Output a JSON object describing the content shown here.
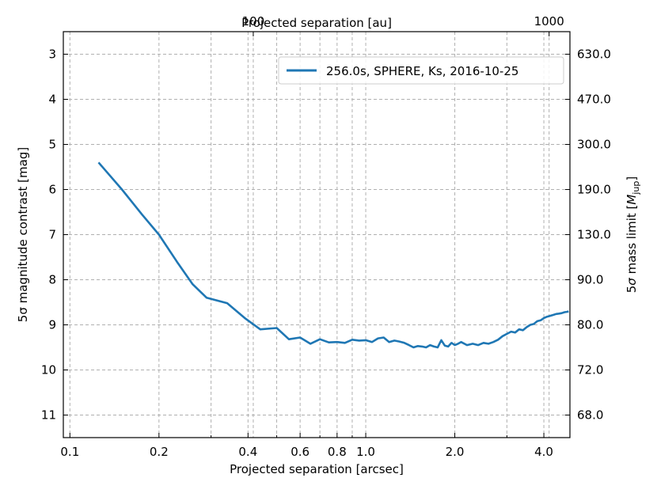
{
  "chart_data": {
    "type": "line",
    "xlabel": "Projected separation [arcsec]",
    "ylabel": "5σ magnitude contrast [mag]",
    "ylabel_sym": "σ",
    "top_xlabel": "Projected separation [au]",
    "right_ylabel": "5σ mass limit [M_jup]",
    "right_ylabel_prefix": "5",
    "right_ylabel_sym": "σ",
    "right_ylabel_mid": " mass limit [",
    "right_ylabel_M": "M",
    "right_ylabel_sub": "jup",
    "right_ylabel_end": "]",
    "x_scale": "log",
    "xlim": [
      0.095,
      4.9
    ],
    "ylim": [
      11.5,
      2.5
    ],
    "y_inverted": true,
    "grid": true,
    "legend_position": "top-right",
    "x_ticks": [
      0.1,
      0.2,
      0.4,
      0.6,
      0.8,
      1.0,
      2.0,
      4.0
    ],
    "x_tick_labels": [
      "0.1",
      "0.2",
      "0.4",
      "0.6",
      "0.8",
      "1.0",
      "2.0",
      "4.0"
    ],
    "x_minor_grid": [
      0.3,
      0.5,
      0.7,
      0.9,
      3.0
    ],
    "y_ticks": [
      3,
      4,
      5,
      6,
      7,
      8,
      9,
      10,
      11
    ],
    "y_tick_labels": [
      "3",
      "4",
      "5",
      "6",
      "7",
      "8",
      "9",
      "10",
      "11"
    ],
    "top_ticks_au": [
      100,
      1000
    ],
    "top_tick_labels": [
      "100",
      "1000"
    ],
    "au_per_arcsec": 240,
    "right_ticks_mag": [
      3,
      4,
      5,
      6,
      7,
      8,
      9,
      10,
      11
    ],
    "right_tick_labels": [
      "630.0",
      "470.0",
      "300.0",
      "190.0",
      "130.0",
      "90.0",
      "80.0",
      "72.0",
      "68.0"
    ],
    "series": [
      {
        "name": "256.0s, SPHERE, Ks, 2016-10-25",
        "color": "#1f77b4",
        "x": [
          0.125,
          0.15,
          0.175,
          0.2,
          0.23,
          0.26,
          0.29,
          0.34,
          0.39,
          0.44,
          0.5,
          0.55,
          0.6,
          0.65,
          0.7,
          0.75,
          0.8,
          0.85,
          0.9,
          0.95,
          1.0,
          1.05,
          1.1,
          1.15,
          1.2,
          1.25,
          1.3,
          1.35,
          1.4,
          1.45,
          1.5,
          1.55,
          1.6,
          1.65,
          1.7,
          1.75,
          1.8,
          1.85,
          1.9,
          1.95,
          2.0,
          2.05,
          2.1,
          2.2,
          2.3,
          2.4,
          2.5,
          2.6,
          2.7,
          2.8,
          2.9,
          3.0,
          3.1,
          3.2,
          3.3,
          3.4,
          3.5,
          3.6,
          3.7,
          3.8,
          3.9,
          4.0,
          4.1,
          4.2,
          4.3,
          4.4,
          4.5,
          4.6,
          4.7,
          4.8,
          4.85
        ],
        "values": [
          5.4,
          6.0,
          6.55,
          7.0,
          7.6,
          8.1,
          8.4,
          8.52,
          8.85,
          9.1,
          9.07,
          9.32,
          9.28,
          9.42,
          9.32,
          9.39,
          9.38,
          9.4,
          9.33,
          9.35,
          9.34,
          9.38,
          9.3,
          9.28,
          9.38,
          9.35,
          9.37,
          9.4,
          9.45,
          9.5,
          9.47,
          9.48,
          9.5,
          9.45,
          9.48,
          9.5,
          9.34,
          9.46,
          9.48,
          9.4,
          9.45,
          9.42,
          9.38,
          9.45,
          9.42,
          9.45,
          9.4,
          9.42,
          9.38,
          9.33,
          9.25,
          9.2,
          9.15,
          9.17,
          9.1,
          9.12,
          9.05,
          9.0,
          8.98,
          8.92,
          8.9,
          8.85,
          8.82,
          8.8,
          8.78,
          8.76,
          8.75,
          8.74,
          8.72,
          8.71,
          8.7
        ]
      }
    ]
  }
}
